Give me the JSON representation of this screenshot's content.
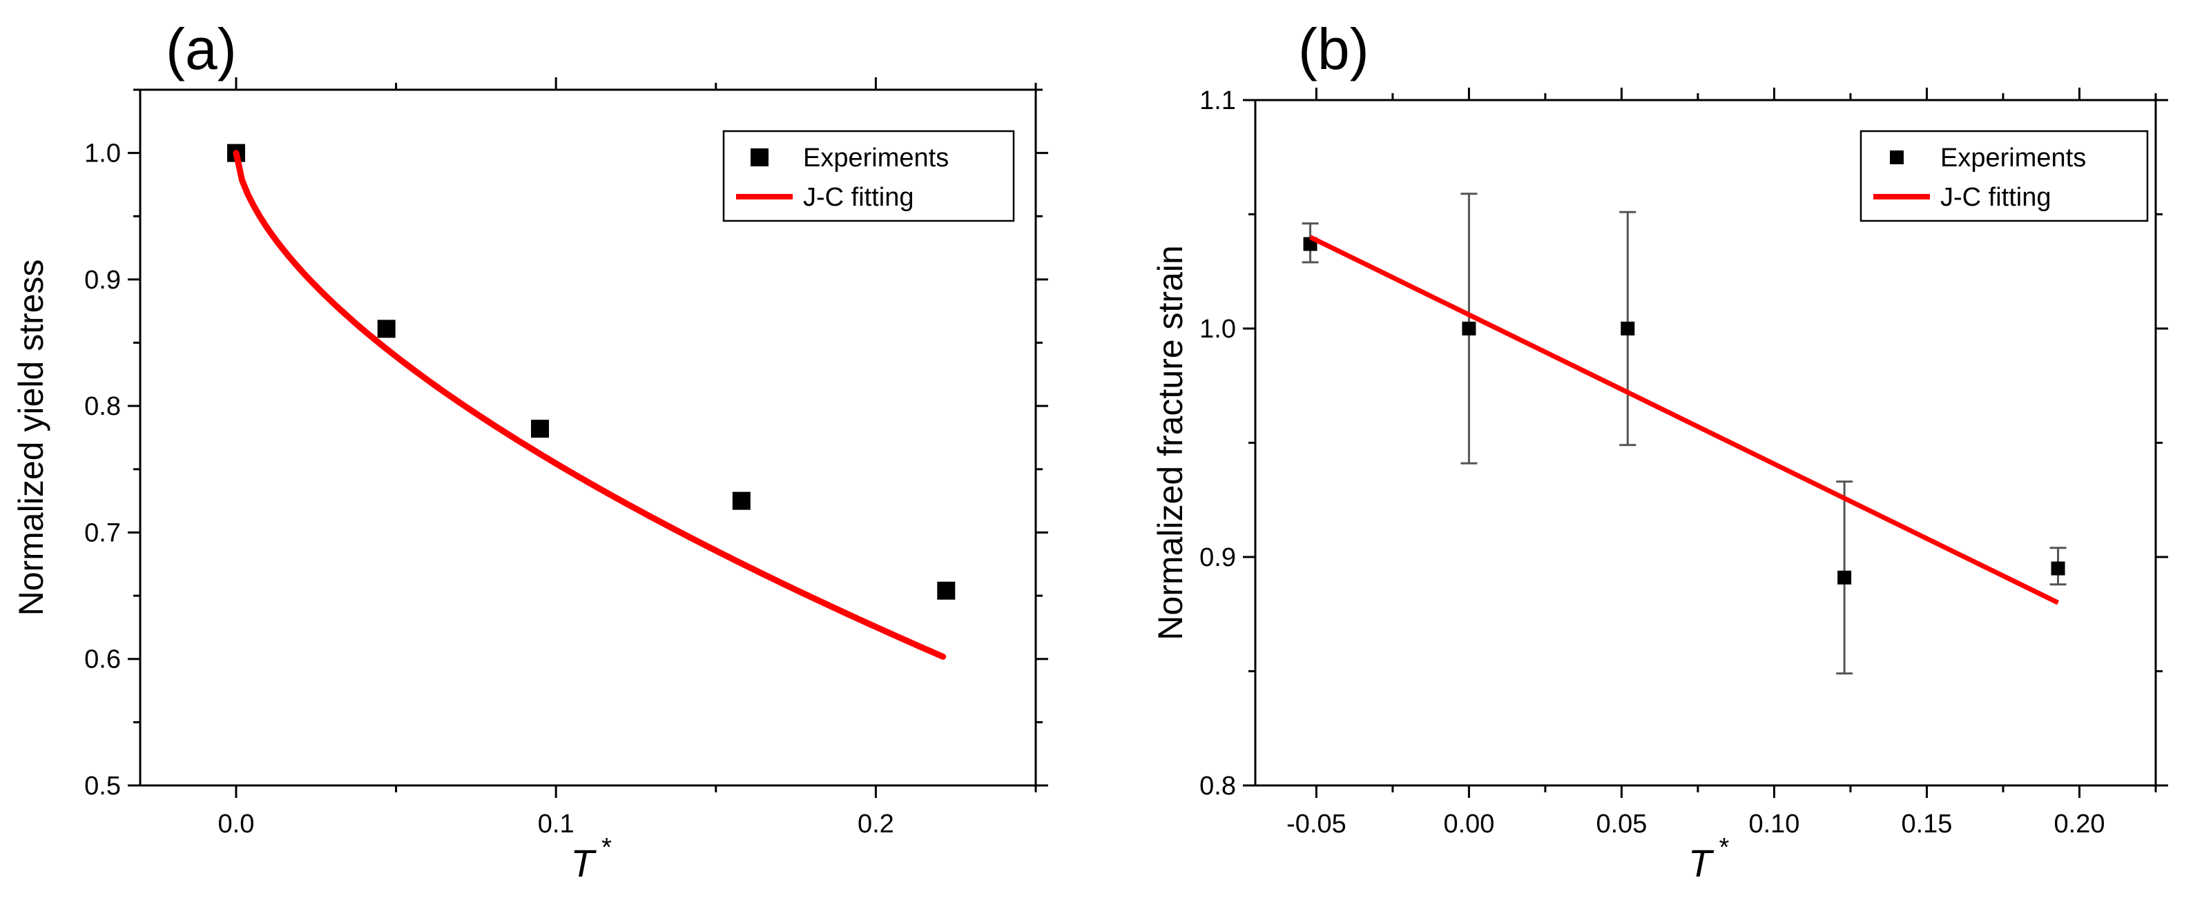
{
  "colors": {
    "fit_line": "#ff0000",
    "marker": "#000000",
    "axis": "#000000",
    "errorbar": "#555555"
  },
  "chart_data": [
    {
      "type": "scatter",
      "panel_label": "(a)",
      "xlabel": "T",
      "xlabel_superscript": "*",
      "ylabel": "Normalized yield stress",
      "xlim": [
        -0.03,
        0.25
      ],
      "ylim": [
        0.5,
        1.05
      ],
      "xticks": [
        0.0,
        0.1,
        0.2
      ],
      "xtick_labels": [
        "0.0",
        "0.1",
        "0.2"
      ],
      "yticks": [
        0.5,
        0.6,
        0.7,
        0.8,
        0.9,
        1.0
      ],
      "ytick_labels": [
        "0.5",
        "0.6",
        "0.7",
        "0.8",
        "0.9",
        "1.0"
      ],
      "legend": {
        "position": "top-right",
        "entries": [
          "Experiments",
          "J-C fitting"
        ]
      },
      "series": [
        {
          "name": "Experiments",
          "kind": "markers",
          "x": [
            0.0,
            0.047,
            0.095,
            0.158,
            0.222
          ],
          "y": [
            1.0,
            0.861,
            0.782,
            0.725,
            0.654
          ]
        },
        {
          "name": "J-C fitting",
          "kind": "curve",
          "model": "1 - x^m",
          "m": 0.61,
          "x_range": [
            0.0,
            0.221
          ]
        }
      ]
    },
    {
      "type": "scatter",
      "panel_label": "(b)",
      "xlabel": "T",
      "xlabel_superscript": "*",
      "ylabel": "Normalized fracture strain",
      "xlim": [
        -0.07,
        0.225
      ],
      "ylim": [
        0.8,
        1.1
      ],
      "xticks": [
        -0.05,
        0.0,
        0.05,
        0.1,
        0.15,
        0.2
      ],
      "xtick_labels": [
        "-0.05",
        "0.00",
        "0.05",
        "0.10",
        "0.15",
        "0.20"
      ],
      "yticks": [
        0.8,
        0.9,
        1.0,
        1.1
      ],
      "ytick_labels": [
        "0.8",
        "0.9",
        "1.0",
        "1.1"
      ],
      "legend": {
        "position": "top-right",
        "entries": [
          "Experiments",
          "J-C fitting"
        ]
      },
      "series": [
        {
          "name": "Experiments",
          "kind": "markers_with_error",
          "x": [
            -0.052,
            0.0,
            0.052,
            0.123,
            0.193
          ],
          "y": [
            1.037,
            1.0,
            1.0,
            0.891,
            0.895
          ],
          "err_low": [
            1.029,
            0.941,
            0.949,
            0.849,
            0.888
          ],
          "err_high": [
            1.046,
            1.059,
            1.051,
            0.933,
            0.904
          ]
        },
        {
          "name": "J-C fitting",
          "kind": "line",
          "x": [
            -0.052,
            0.193
          ],
          "y": [
            1.04,
            0.88
          ]
        }
      ]
    }
  ]
}
